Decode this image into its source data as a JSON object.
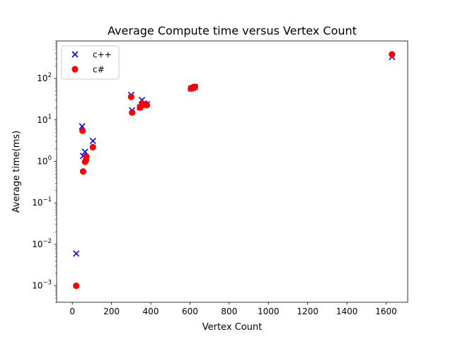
{
  "chart_data": {
    "type": "scatter",
    "title": "Average Compute time versus Vertex Count",
    "xlabel": "Vertex Count",
    "ylabel": "Average time(ms)",
    "xlim": [
      -80,
      1710
    ],
    "ylim": [
      0.0004,
      800
    ],
    "yscale": "log",
    "grid": false,
    "legend_position": "upper-left",
    "x_ticks": [
      0,
      200,
      400,
      600,
      800,
      1000,
      1200,
      1400,
      1600
    ],
    "x_tick_labels": [
      "0",
      "200",
      "400",
      "600",
      "800",
      "1000",
      "1200",
      "1400",
      "1600"
    ],
    "y_ticks": [
      0.001,
      0.01,
      0.1,
      1,
      10,
      100
    ],
    "y_tick_labels": [
      {
        "base": "10",
        "exp": "−3"
      },
      {
        "base": "10",
        "exp": "−2"
      },
      {
        "base": "10",
        "exp": "−1"
      },
      {
        "base": "10",
        "exp": "0"
      },
      {
        "base": "10",
        "exp": "1"
      },
      {
        "base": "10",
        "exp": "2"
      }
    ],
    "series": [
      {
        "name": "c++",
        "marker": "x",
        "color": "#0000ff",
        "points": [
          {
            "x": 20,
            "y": 0.006
          },
          {
            "x": 50,
            "y": 7.0
          },
          {
            "x": 55,
            "y": 1.35
          },
          {
            "x": 65,
            "y": 1.7
          },
          {
            "x": 70,
            "y": 1.2
          },
          {
            "x": 105,
            "y": 3.1
          },
          {
            "x": 300,
            "y": 40
          },
          {
            "x": 305,
            "y": 17
          },
          {
            "x": 345,
            "y": 20
          },
          {
            "x": 355,
            "y": 30
          },
          {
            "x": 365,
            "y": 25
          },
          {
            "x": 380,
            "y": 24
          },
          {
            "x": 605,
            "y": 57
          },
          {
            "x": 615,
            "y": 59
          },
          {
            "x": 625,
            "y": 62
          },
          {
            "x": 1630,
            "y": 330
          }
        ]
      },
      {
        "name": "c#",
        "marker": "o",
        "color": "#ff0000",
        "points": [
          {
            "x": 20,
            "y": 0.001
          },
          {
            "x": 52,
            "y": 5.5
          },
          {
            "x": 55,
            "y": 0.57
          },
          {
            "x": 65,
            "y": 0.98
          },
          {
            "x": 70,
            "y": 1.1
          },
          {
            "x": 72,
            "y": 1.3
          },
          {
            "x": 105,
            "y": 2.2
          },
          {
            "x": 300,
            "y": 36
          },
          {
            "x": 305,
            "y": 15
          },
          {
            "x": 345,
            "y": 20
          },
          {
            "x": 355,
            "y": 25
          },
          {
            "x": 365,
            "y": 23
          },
          {
            "x": 380,
            "y": 23
          },
          {
            "x": 605,
            "y": 57
          },
          {
            "x": 615,
            "y": 60
          },
          {
            "x": 625,
            "y": 63
          },
          {
            "x": 1630,
            "y": 380
          }
        ]
      }
    ]
  }
}
